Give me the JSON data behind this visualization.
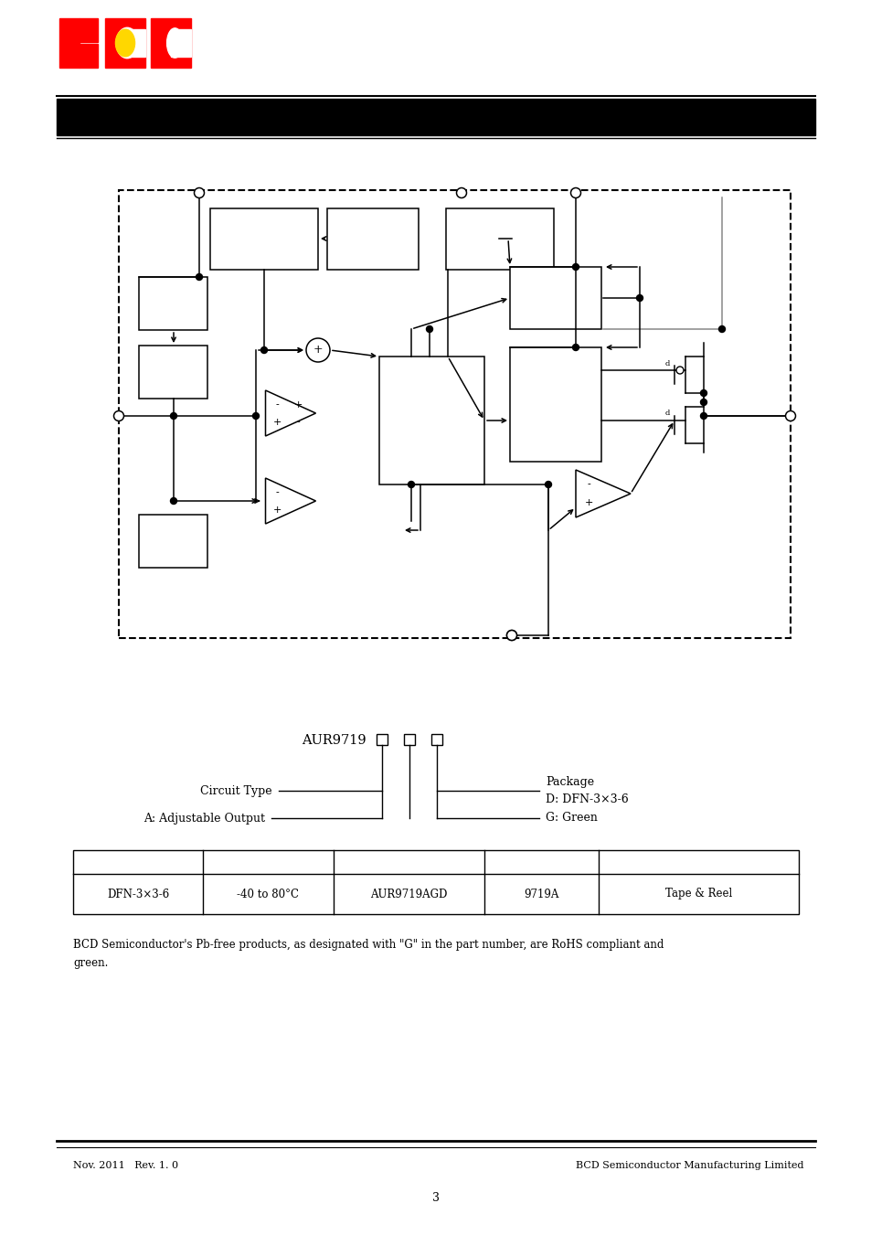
{
  "bg_color": "#ffffff",
  "page_number": "3",
  "footer_left": "Nov. 2011   Rev. 1. 0",
  "footer_right": "BCD Semiconductor Manufacturing Limited",
  "table_row": [
    "DFN-3×3-6",
    "-40 to 80°C",
    "AUR9719AGD",
    "9719A",
    "Tape & Reel"
  ],
  "pb_free_text": "BCD Semiconductor's Pb-free products, as designated with \"G\" in the part number, are RoHS compliant and green.",
  "pb_free_text2": "green."
}
